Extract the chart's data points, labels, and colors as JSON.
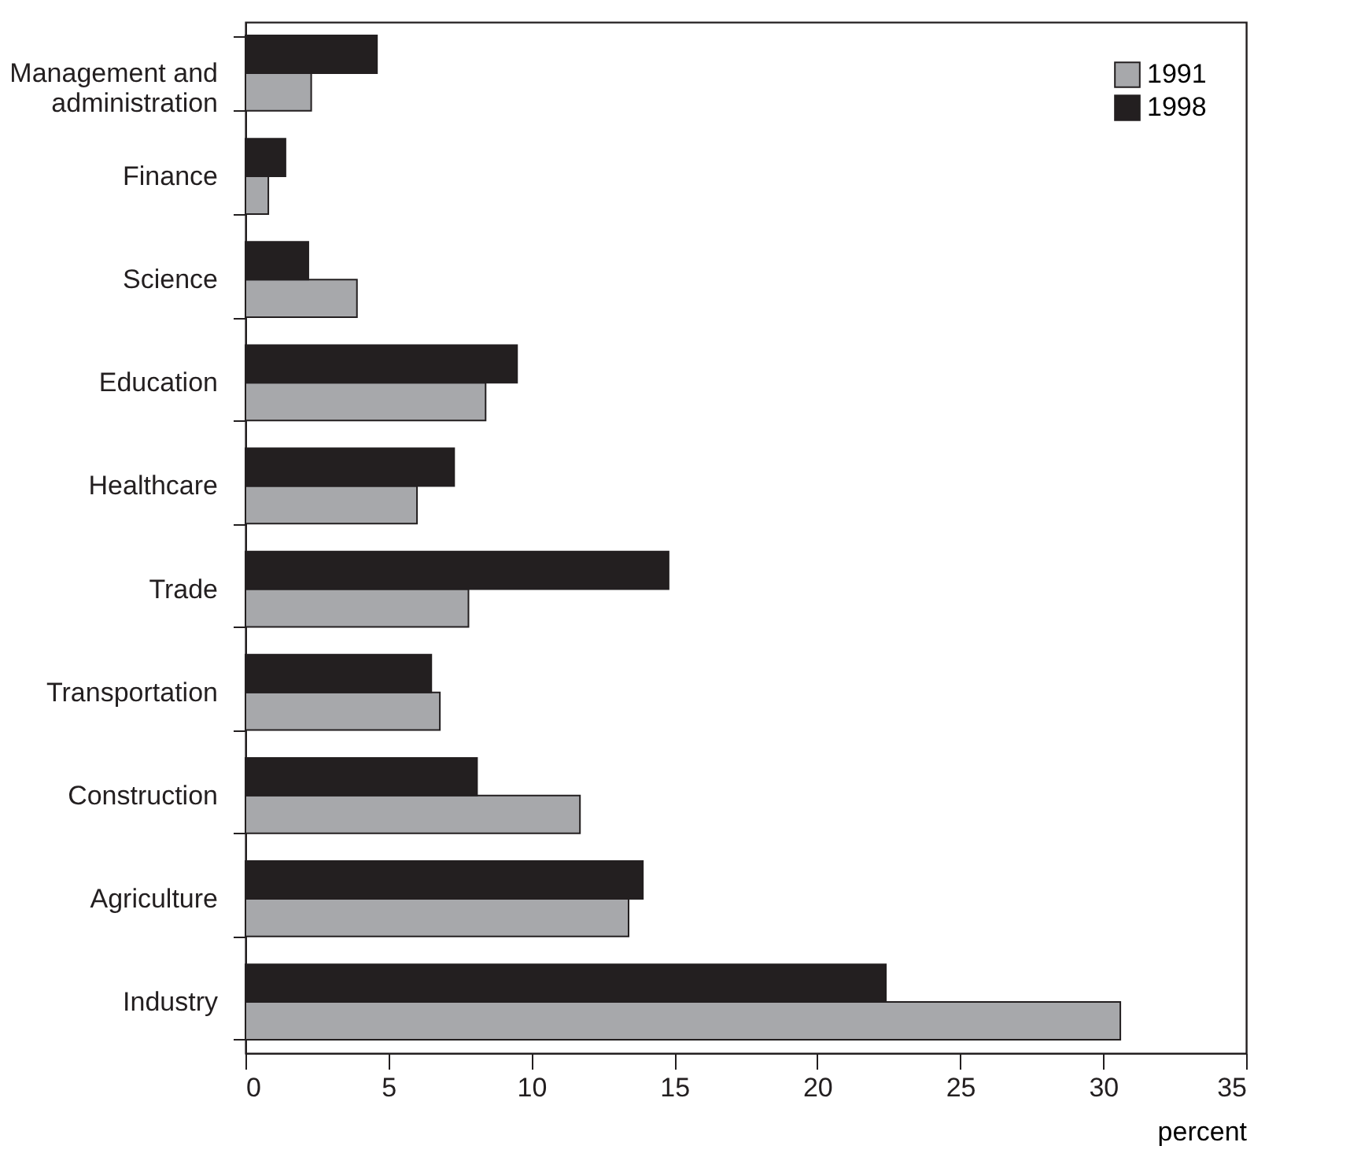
{
  "chart_data": {
    "type": "bar",
    "orientation": "horizontal",
    "xlabel": "percent",
    "categories": [
      "Management and administration",
      "Finance",
      "Science",
      "Education",
      "Healthcare",
      "Trade",
      "Transportation",
      "Construction",
      "Agriculture",
      "Industry"
    ],
    "series": [
      {
        "name": "1991",
        "color": "#a7a8ab",
        "values": [
          2.3,
          0.8,
          3.9,
          8.4,
          6.0,
          7.8,
          6.8,
          11.7,
          13.4,
          30.6
        ]
      },
      {
        "name": "1998",
        "color": "#231f20",
        "values": [
          4.6,
          1.4,
          2.2,
          9.5,
          7.3,
          14.8,
          6.5,
          8.1,
          13.9,
          22.4
        ]
      }
    ],
    "xlim": [
      0,
      35
    ],
    "xticks": [
      0,
      5,
      10,
      15,
      20,
      25,
      30,
      35
    ],
    "grid": false,
    "legend": "top right"
  }
}
